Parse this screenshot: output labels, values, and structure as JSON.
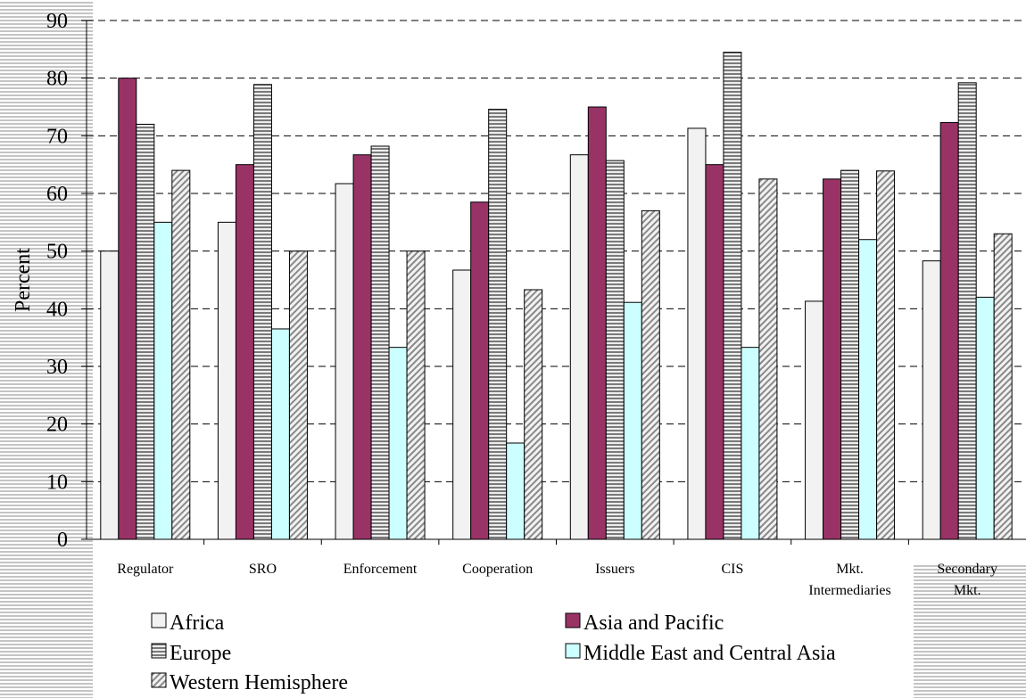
{
  "chart_data": {
    "type": "bar",
    "title": "",
    "xlabel": "",
    "ylabel": "Percent",
    "ylim": [
      0,
      90
    ],
    "yticks": [
      0,
      10,
      20,
      30,
      40,
      50,
      60,
      70,
      80,
      90
    ],
    "grid": "horizontal dashed",
    "legend_position": "bottom",
    "categories": [
      [
        "Regulator"
      ],
      [
        "SRO"
      ],
      [
        "Enforcement"
      ],
      [
        "Cooperation"
      ],
      [
        "Issuers"
      ],
      [
        "CIS"
      ],
      [
        "Mkt.",
        "Intermediaries"
      ],
      [
        "Secondary",
        "Mkt."
      ]
    ],
    "series": [
      {
        "name": "Africa",
        "color": "#f2f2f2",
        "pattern": "solid",
        "values": [
          50,
          55,
          61.7,
          46.7,
          66.7,
          71.3,
          41.3,
          48.3
        ]
      },
      {
        "name": "Asia and Pacific",
        "color": "#993366",
        "pattern": "solid",
        "values": [
          80,
          65,
          66.7,
          58.5,
          75,
          65,
          62.5,
          72.3
        ]
      },
      {
        "name": "Europe",
        "color": "#bfbfbf",
        "pattern": "horizontal-stripes",
        "values": [
          72,
          78.9,
          68.2,
          74.6,
          65.7,
          84.5,
          64,
          79.2
        ]
      },
      {
        "name": "Middle East and Central Asia",
        "color": "#ccffff",
        "pattern": "solid",
        "values": [
          55,
          36.5,
          33.3,
          16.7,
          41.1,
          33.3,
          52,
          42
        ]
      },
      {
        "name": "Western Hemisphere",
        "color": "#bfbfbf",
        "pattern": "diagonal-stripes",
        "values": [
          64,
          50,
          50,
          43.3,
          57,
          62.5,
          63.9,
          53
        ]
      }
    ]
  }
}
